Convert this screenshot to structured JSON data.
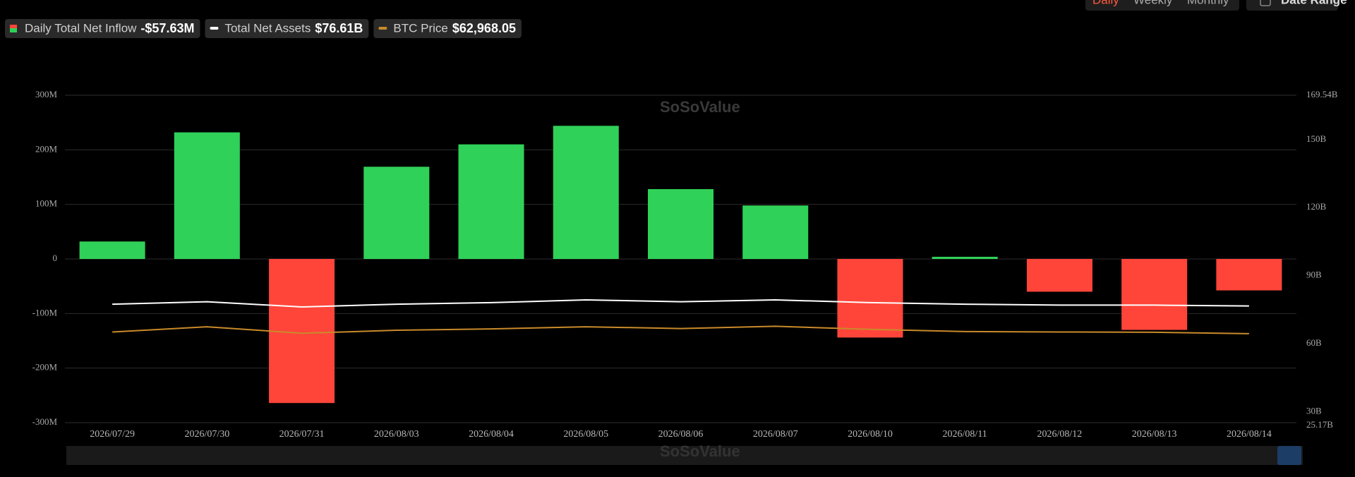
{
  "chart_data": {
    "type": "bar",
    "controls": [
      "Daily",
      "Weekly",
      "Monthly"
    ],
    "date_range": "Date Range",
    "watermark": "SoSoValue",
    "categories": [
      "2026/07/29",
      "2026/07/30",
      "2026/07/31",
      "2026/08/03",
      "2026/08/04",
      "2026/08/05",
      "2026/08/06",
      "2026/08/07",
      "2026/08/10",
      "2026/08/11",
      "2026/08/12",
      "2026/08/13",
      "2026/08/14"
    ],
    "series": [
      {
        "name": "Daily Total Net Inflow",
        "type": "bar",
        "color": "#30d158",
        "negative_color": "#ff453a",
        "legend_value": "-$57.63M",
        "values": [
          32,
          232,
          -264,
          169,
          210,
          244,
          128,
          98,
          -144,
          4,
          -60,
          -130,
          -57.63
        ]
      },
      {
        "name": "Total Net Assets",
        "type": "line",
        "axis": "y2",
        "color": "#ffffff",
        "legend_value": "$76.61B",
        "values": [
          77.4,
          78.5,
          76.2,
          77.4,
          78.1,
          79.3,
          78.5,
          79.3,
          78.1,
          77.4,
          77.0,
          77.0,
          76.61
        ]
      },
      {
        "name": "BTC Price",
        "type": "line",
        "axis": "y3",
        "color": "#c98a2a",
        "legend_value": "$62,968.05",
        "values": [
          64190,
          67860,
          63270,
          65410,
          66330,
          67860,
          66630,
          68200,
          66020,
          64500,
          64190,
          64000,
          62968.05
        ]
      }
    ],
    "ylim": [
      -300,
      300
    ],
    "yticks": [
      {
        "value": -300,
        "label": "-300M"
      },
      {
        "value": -200,
        "label": "-200M"
      },
      {
        "value": -100,
        "label": "-100M"
      },
      0,
      {
        "value": 100,
        "label": "100M"
      },
      {
        "value": 200,
        "label": "200M"
      },
      {
        "value": 300,
        "label": "300M"
      }
    ],
    "y2lim": [
      25.17,
      169.54
    ],
    "y2ticks": [
      {
        "value": 25.17,
        "label": "25.17B"
      },
      {
        "value": 30,
        "label": "30B"
      },
      {
        "value": 60,
        "label": "60B"
      },
      {
        "value": 90,
        "label": "90B"
      },
      {
        "value": 120,
        "label": "120B"
      },
      {
        "value": 150,
        "label": "150B"
      },
      {
        "value": 169.54,
        "label": "169.54B"
      }
    ],
    "y3lim": [
      0,
      231700
    ],
    "grid": true
  }
}
